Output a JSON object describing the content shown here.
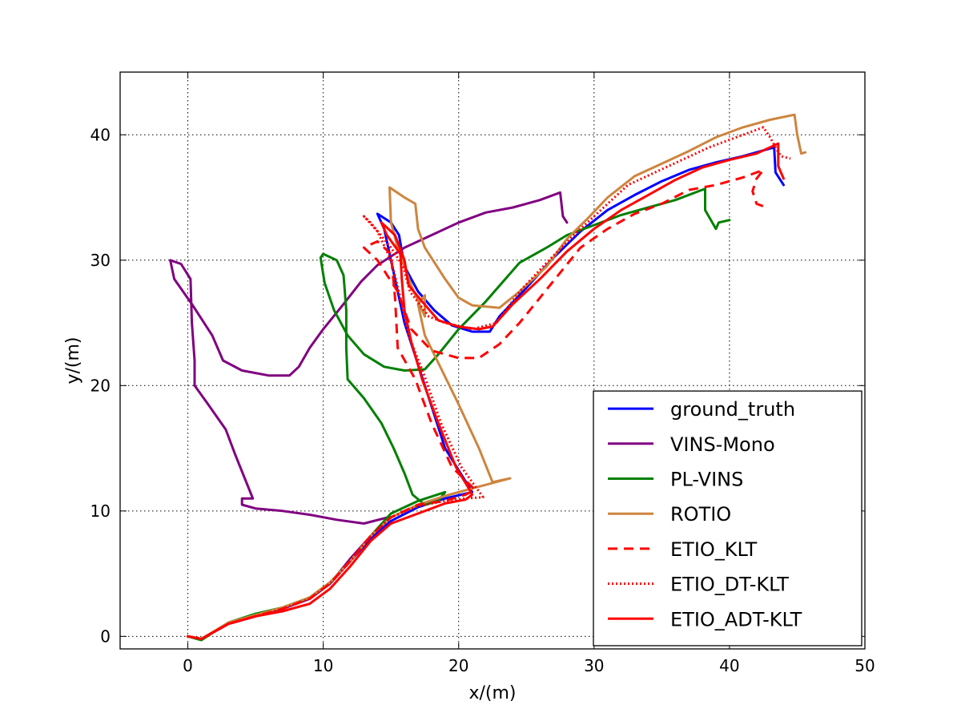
{
  "chart_data": {
    "type": "line",
    "title": "",
    "xlabel": "x/(m)",
    "ylabel": "y/(m)",
    "xlim": [
      -5,
      50
    ],
    "ylim": [
      -1,
      45
    ],
    "xticks": [
      0,
      10,
      20,
      30,
      40,
      50
    ],
    "yticks": [
      0,
      10,
      20,
      30,
      40
    ],
    "grid": true,
    "legend_position": "lower right",
    "series": [
      {
        "name": "ground_truth",
        "color": "#0000ff",
        "style": "solid",
        "points": [
          [
            0,
            0
          ],
          [
            1,
            -0.2
          ],
          [
            3,
            1
          ],
          [
            5,
            1.6
          ],
          [
            7,
            2.2
          ],
          [
            9,
            3
          ],
          [
            10.5,
            4.2
          ],
          [
            12,
            6
          ],
          [
            13.5,
            7.8
          ],
          [
            15,
            9.2
          ],
          [
            17,
            10.3
          ],
          [
            19,
            11
          ],
          [
            21,
            11.5
          ],
          [
            19,
            15
          ],
          [
            17.5,
            20
          ],
          [
            16,
            25
          ],
          [
            15,
            30
          ],
          [
            14.5,
            32.5
          ],
          [
            14,
            33.7
          ],
          [
            15,
            33
          ],
          [
            15.6,
            32
          ],
          [
            16,
            29.5
          ],
          [
            17,
            27.5
          ],
          [
            18.2,
            26
          ],
          [
            19.5,
            24.8
          ],
          [
            21,
            24.3
          ],
          [
            22.3,
            24.3
          ],
          [
            23,
            25.5
          ],
          [
            25,
            27.8
          ],
          [
            27,
            30.2
          ],
          [
            29,
            32.3
          ],
          [
            31,
            34
          ],
          [
            33,
            35.2
          ],
          [
            35,
            36.3
          ],
          [
            37,
            37.2
          ],
          [
            39,
            37.8
          ],
          [
            41,
            38.3
          ],
          [
            43.3,
            39
          ],
          [
            43.4,
            37
          ],
          [
            44,
            36
          ]
        ]
      },
      {
        "name": "VINS-Mono",
        "color": "#800080",
        "style": "solid",
        "points": [
          [
            0,
            0
          ],
          [
            1,
            -0.2
          ],
          [
            3,
            1
          ],
          [
            5,
            1.6
          ],
          [
            7,
            2.2
          ],
          [
            9,
            3
          ],
          [
            10.5,
            4.2
          ],
          [
            12,
            6.2
          ],
          [
            13.5,
            8
          ],
          [
            14.8,
            9.5
          ],
          [
            13,
            9
          ],
          [
            11,
            9.3
          ],
          [
            9,
            9.7
          ],
          [
            7,
            10
          ],
          [
            5,
            10.2
          ],
          [
            4,
            10.5
          ],
          [
            4,
            11
          ],
          [
            4.8,
            11
          ],
          [
            3.5,
            14.5
          ],
          [
            2.8,
            16.5
          ],
          [
            1.5,
            18.5
          ],
          [
            0.5,
            20
          ],
          [
            0.5,
            22
          ],
          [
            0.3,
            25
          ],
          [
            0.2,
            28.5
          ],
          [
            -0.5,
            29.7
          ],
          [
            -1.3,
            30
          ],
          [
            -1,
            28.5
          ],
          [
            0.3,
            26.5
          ],
          [
            1.8,
            24
          ],
          [
            2.6,
            22
          ],
          [
            4,
            21.2
          ],
          [
            6,
            20.8
          ],
          [
            7.5,
            20.8
          ],
          [
            8.2,
            21.5
          ],
          [
            9,
            23
          ],
          [
            10,
            24.5
          ],
          [
            11.5,
            26.5
          ],
          [
            12.8,
            28.3
          ],
          [
            14,
            29.6
          ],
          [
            16,
            31
          ],
          [
            18,
            32
          ],
          [
            20,
            33
          ],
          [
            22,
            33.8
          ],
          [
            24,
            34.2
          ],
          [
            26,
            34.8
          ],
          [
            27.5,
            35.4
          ],
          [
            27.7,
            33.5
          ],
          [
            28,
            33
          ]
        ]
      },
      {
        "name": "PL-VINS",
        "color": "#008000",
        "style": "solid",
        "points": [
          [
            0,
            0
          ],
          [
            1,
            -0.3
          ],
          [
            3,
            1.1
          ],
          [
            5,
            1.8
          ],
          [
            7,
            2.3
          ],
          [
            9,
            3.1
          ],
          [
            10.5,
            4.3
          ],
          [
            12,
            6
          ],
          [
            13.5,
            8
          ],
          [
            15,
            9.8
          ],
          [
            17,
            10.8
          ],
          [
            19,
            11.5
          ],
          [
            18.5,
            10.8
          ],
          [
            17.5,
            10.5
          ],
          [
            16.6,
            11.3
          ],
          [
            16,
            13
          ],
          [
            15.2,
            15
          ],
          [
            14.3,
            17
          ],
          [
            13,
            19
          ],
          [
            11.8,
            20.5
          ],
          [
            11.7,
            23
          ],
          [
            11.7,
            26
          ],
          [
            11.5,
            28.8
          ],
          [
            11,
            30
          ],
          [
            10,
            30.5
          ],
          [
            9.8,
            30.2
          ],
          [
            10.1,
            28.2
          ],
          [
            10.8,
            26
          ],
          [
            11.8,
            24
          ],
          [
            13,
            22.5
          ],
          [
            14.5,
            21.5
          ],
          [
            16,
            21.2
          ],
          [
            17.5,
            21.3
          ],
          [
            18.5,
            22.5
          ],
          [
            20,
            24.5
          ],
          [
            22,
            26.7
          ],
          [
            24.5,
            29.8
          ],
          [
            26.5,
            31
          ],
          [
            28,
            32
          ],
          [
            30,
            32.8
          ],
          [
            32,
            33.6
          ],
          [
            34,
            34.2
          ],
          [
            36,
            34.8
          ],
          [
            38.2,
            35.7
          ],
          [
            38.2,
            34
          ],
          [
            39,
            32.5
          ],
          [
            39.2,
            33
          ],
          [
            40,
            33.2
          ]
        ]
      },
      {
        "name": "ROTIO",
        "color": "#cd853f",
        "style": "solid",
        "points": [
          [
            0,
            0
          ],
          [
            1,
            -0.2
          ],
          [
            3,
            1.1
          ],
          [
            5,
            1.7
          ],
          [
            7,
            2.3
          ],
          [
            9,
            3.1
          ],
          [
            10.5,
            4.3
          ],
          [
            12,
            6
          ],
          [
            13.5,
            8
          ],
          [
            15,
            9.5
          ],
          [
            17,
            10.5
          ],
          [
            19,
            11.2
          ],
          [
            21,
            11.8
          ],
          [
            23.8,
            12.6
          ],
          [
            22.5,
            12.3
          ],
          [
            21.5,
            15
          ],
          [
            20,
            18.5
          ],
          [
            18.5,
            21.8
          ],
          [
            17.5,
            24
          ],
          [
            17,
            26.5
          ],
          [
            17.5,
            27.2
          ],
          [
            17.5,
            25.5
          ],
          [
            16.5,
            28
          ],
          [
            15.5,
            31
          ],
          [
            15,
            33
          ],
          [
            14.9,
            35.8
          ],
          [
            16,
            35
          ],
          [
            16.8,
            34.5
          ],
          [
            17,
            32.5
          ],
          [
            17.5,
            31
          ],
          [
            19,
            28.5
          ],
          [
            20,
            27
          ],
          [
            21,
            26.4
          ],
          [
            23,
            26.2
          ],
          [
            24.5,
            27.5
          ],
          [
            26.5,
            29.5
          ],
          [
            28,
            31.7
          ],
          [
            29.5,
            33.3
          ],
          [
            31,
            35
          ],
          [
            33,
            36.7
          ],
          [
            35,
            37.7
          ],
          [
            37,
            38.7
          ],
          [
            39,
            39.8
          ],
          [
            41,
            40.6
          ],
          [
            43,
            41.2
          ],
          [
            44.8,
            41.6
          ],
          [
            45,
            40
          ],
          [
            45.3,
            38.5
          ],
          [
            45.6,
            38.6
          ]
        ]
      },
      {
        "name": "ETIO_KLT",
        "color": "#ff0000",
        "style": "dashed",
        "points": [
          [
            0,
            0
          ],
          [
            1,
            -0.2
          ],
          [
            3,
            1
          ],
          [
            5,
            1.6
          ],
          [
            7,
            2.2
          ],
          [
            9,
            3
          ],
          [
            10.5,
            4.2
          ],
          [
            12,
            6
          ],
          [
            13.5,
            8
          ],
          [
            15,
            9.5
          ],
          [
            17,
            10.5
          ],
          [
            19,
            10.8
          ],
          [
            20.5,
            11.3
          ],
          [
            21.2,
            11.7
          ],
          [
            19.5,
            13.5
          ],
          [
            18,
            17
          ],
          [
            16.8,
            20.5
          ],
          [
            15.5,
            23
          ],
          [
            15.3,
            27
          ],
          [
            15,
            30.5
          ],
          [
            14,
            31.5
          ],
          [
            13,
            31
          ],
          [
            14,
            30
          ],
          [
            15.5,
            27.5
          ],
          [
            16.5,
            24.5
          ],
          [
            18,
            22.8
          ],
          [
            20,
            22.2
          ],
          [
            21.5,
            22.2
          ],
          [
            23,
            23.3
          ],
          [
            24.5,
            25
          ],
          [
            26,
            27
          ],
          [
            27.5,
            29
          ],
          [
            29,
            31
          ],
          [
            31,
            32.5
          ],
          [
            33,
            33.7
          ],
          [
            35,
            34.5
          ],
          [
            37,
            35.6
          ],
          [
            39,
            36
          ],
          [
            41,
            36.6
          ],
          [
            42.5,
            37.2
          ],
          [
            42,
            36.5
          ],
          [
            41.7,
            35.5
          ],
          [
            42,
            34.5
          ],
          [
            42.5,
            34.3
          ]
        ]
      },
      {
        "name": "ETIO_DT-KLT",
        "color": "#ff0000",
        "style": "dotted",
        "points": [
          [
            0,
            0
          ],
          [
            1,
            -0.2
          ],
          [
            3,
            1
          ],
          [
            5,
            1.6
          ],
          [
            7,
            2.2
          ],
          [
            9,
            3
          ],
          [
            10.5,
            4.2
          ],
          [
            12,
            6
          ],
          [
            13.5,
            8
          ],
          [
            15,
            9.5
          ],
          [
            17,
            10.4
          ],
          [
            19,
            10.8
          ],
          [
            20.5,
            11
          ],
          [
            21.8,
            11.1
          ],
          [
            20.2,
            13.5
          ],
          [
            18.7,
            17
          ],
          [
            17.4,
            21
          ],
          [
            16.3,
            24
          ],
          [
            15.7,
            27
          ],
          [
            15,
            30
          ],
          [
            14,
            32.3
          ],
          [
            13,
            33.5
          ],
          [
            13.5,
            33
          ],
          [
            15,
            31
          ],
          [
            15.9,
            29.5
          ],
          [
            16.4,
            27.5
          ],
          [
            17.8,
            25.5
          ],
          [
            19,
            25
          ],
          [
            21,
            24.5
          ],
          [
            22.8,
            25
          ],
          [
            24.5,
            27.5
          ],
          [
            26.5,
            29.8
          ],
          [
            28.5,
            32
          ],
          [
            30.5,
            34
          ],
          [
            32.5,
            36
          ],
          [
            34.5,
            37
          ],
          [
            36.5,
            38
          ],
          [
            38.5,
            39
          ],
          [
            40.5,
            39.8
          ],
          [
            42.5,
            40.6
          ],
          [
            43,
            39.8
          ],
          [
            43.5,
            38.8
          ],
          [
            43.8,
            38.3
          ],
          [
            44.5,
            38.1
          ]
        ]
      },
      {
        "name": "ETIO_ADT-KLT",
        "color": "#ff0000",
        "style": "solid",
        "points": [
          [
            0,
            0
          ],
          [
            1,
            -0.2
          ],
          [
            3,
            1
          ],
          [
            5,
            1.6
          ],
          [
            7,
            2
          ],
          [
            9,
            2.6
          ],
          [
            10.5,
            3.8
          ],
          [
            12,
            5.6
          ],
          [
            13.5,
            7.6
          ],
          [
            15,
            9
          ],
          [
            17,
            9.8
          ],
          [
            19,
            10.6
          ],
          [
            20.5,
            10.9
          ],
          [
            21,
            11.3
          ],
          [
            20.8,
            11.7
          ],
          [
            19.8,
            13.5
          ],
          [
            18.5,
            17
          ],
          [
            17.3,
            20.5
          ],
          [
            16.5,
            23.5
          ],
          [
            16,
            26
          ],
          [
            15.8,
            28.5
          ],
          [
            15.7,
            30.5
          ],
          [
            14.7,
            32
          ],
          [
            14.3,
            33
          ],
          [
            15.3,
            32
          ],
          [
            16,
            30
          ],
          [
            16.3,
            28
          ],
          [
            17.3,
            26.7
          ],
          [
            18.5,
            25.2
          ],
          [
            20,
            24.7
          ],
          [
            21.5,
            24.5
          ],
          [
            22.5,
            24.7
          ],
          [
            24,
            26.5
          ],
          [
            26,
            28.5
          ],
          [
            28,
            30.7
          ],
          [
            30,
            32.5
          ],
          [
            32,
            34
          ],
          [
            34,
            35.2
          ],
          [
            36,
            36.4
          ],
          [
            38,
            37.4
          ],
          [
            40,
            38
          ],
          [
            42,
            38.5
          ],
          [
            43.6,
            39.3
          ],
          [
            43.6,
            37.5
          ],
          [
            44,
            36.5
          ]
        ]
      }
    ]
  }
}
